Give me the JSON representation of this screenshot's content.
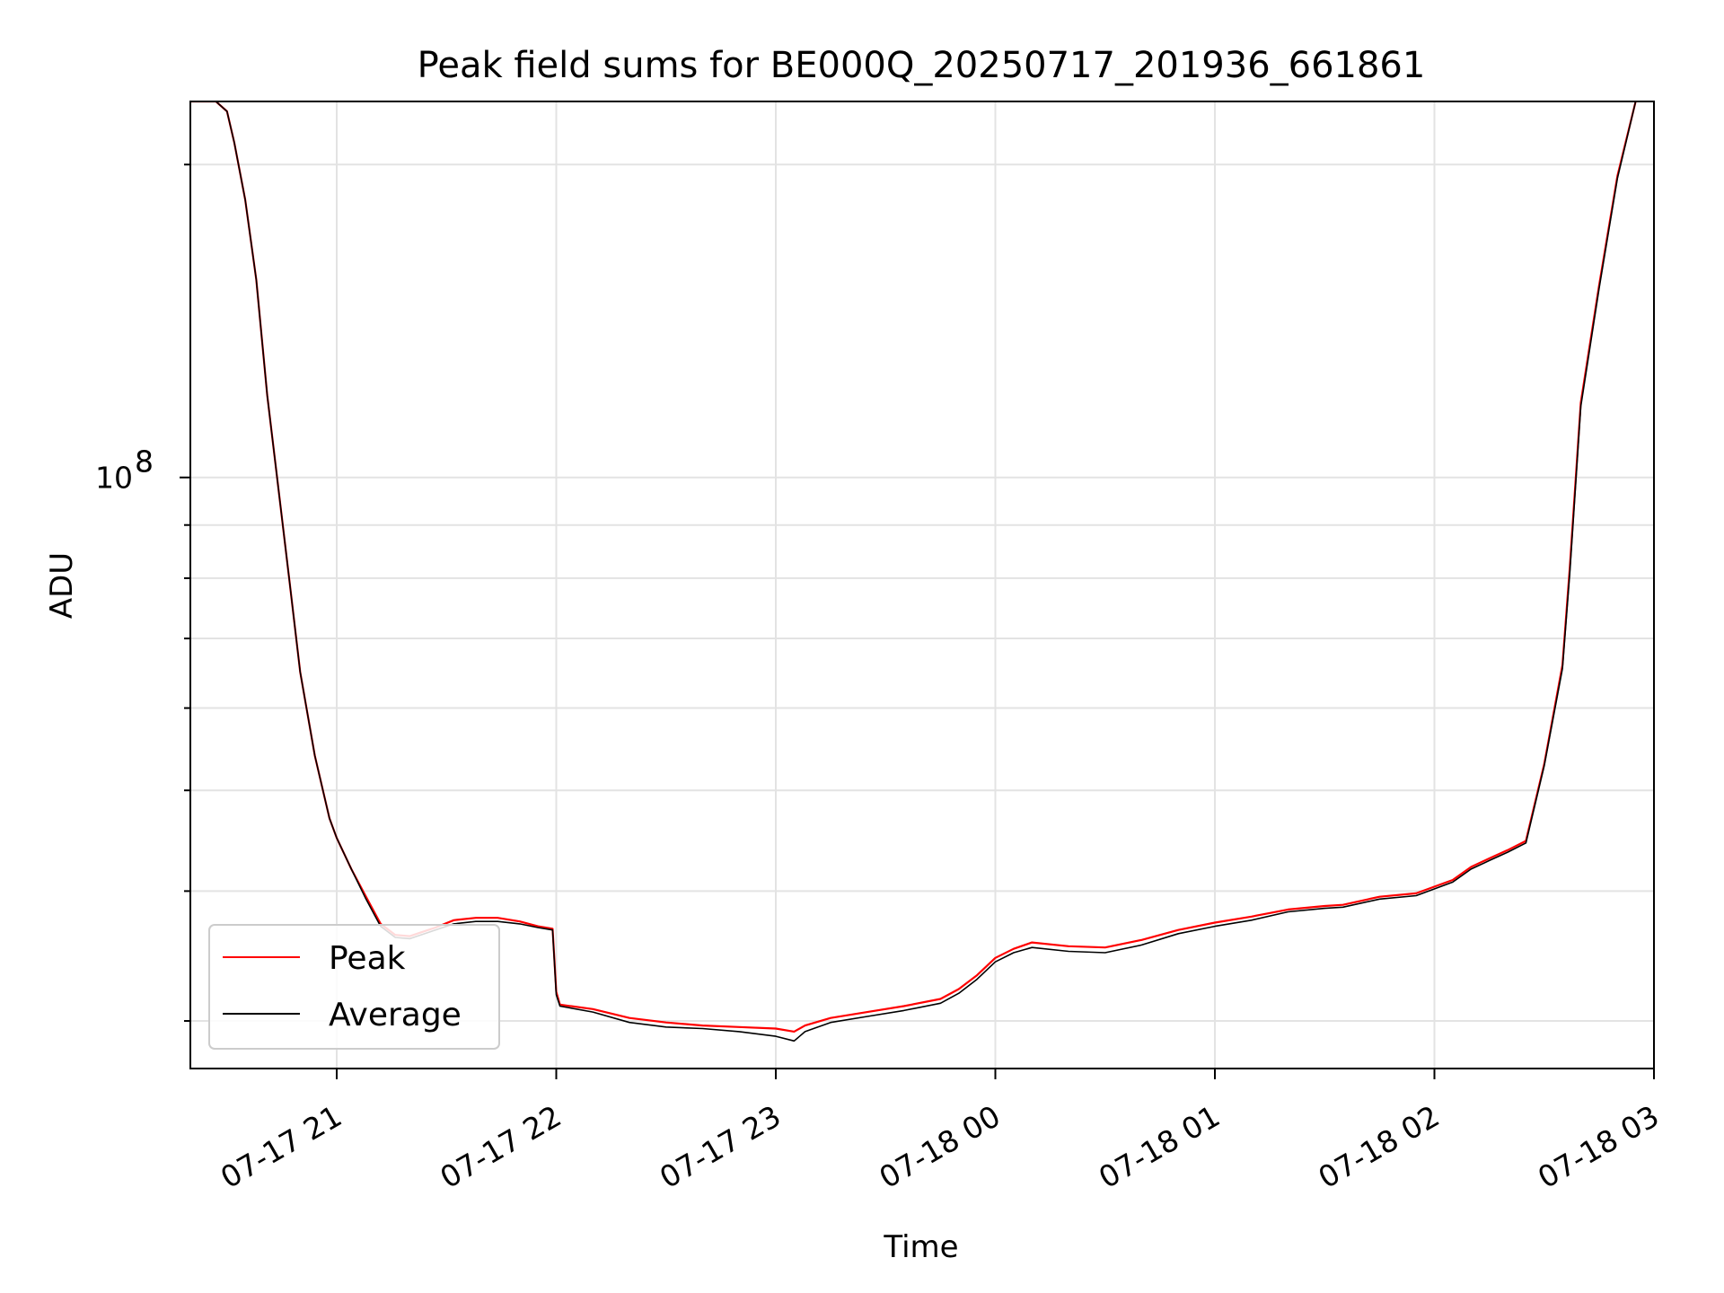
{
  "chart_data": {
    "type": "line",
    "title": "Peak field sums for BE000Q_20250717_201936_661861",
    "xlabel": "Time",
    "ylabel": "ADU",
    "y_scale": "log",
    "ylim": [
      27000000,
      230000000
    ],
    "xlim": [
      "2025-07-17 20:20",
      "2025-07-18 03:00"
    ],
    "grid": true,
    "legend_position": "lower-left",
    "x_ticks": [
      {
        "value": "2025-07-17 21:00",
        "label": "07-17 21"
      },
      {
        "value": "2025-07-17 22:00",
        "label": "07-17 22"
      },
      {
        "value": "2025-07-17 23:00",
        "label": "07-17 23"
      },
      {
        "value": "2025-07-18 00:00",
        "label": "07-18 00"
      },
      {
        "value": "2025-07-18 01:00",
        "label": "07-18 01"
      },
      {
        "value": "2025-07-18 02:00",
        "label": "07-18 02"
      },
      {
        "value": "2025-07-18 03:00",
        "label": "07-18 03"
      }
    ],
    "y_major_ticks": [
      {
        "value": 100000000,
        "base": "10",
        "exponent": "8"
      }
    ],
    "y_minor_ticks": [
      30000000,
      40000000,
      50000000,
      60000000,
      70000000,
      80000000,
      90000000,
      200000000
    ],
    "series": [
      {
        "name": "Peak",
        "color": "#ff0000",
        "x": [
          "2025-07-17 20:20",
          "2025-07-17 20:27",
          "2025-07-17 20:30",
          "2025-07-17 20:32",
          "2025-07-17 20:35",
          "2025-07-17 20:38",
          "2025-07-17 20:41",
          "2025-07-17 20:44",
          "2025-07-17 20:47",
          "2025-07-17 20:50",
          "2025-07-17 20:54",
          "2025-07-17 20:58",
          "2025-07-17 21:00",
          "2025-07-17 21:04",
          "2025-07-17 21:08",
          "2025-07-17 21:12",
          "2025-07-17 21:16",
          "2025-07-17 21:20",
          "2025-07-17 21:23",
          "2025-07-17 21:27",
          "2025-07-17 21:32",
          "2025-07-17 21:38",
          "2025-07-17 21:44",
          "2025-07-17 21:50",
          "2025-07-17 21:55",
          "2025-07-17 21:59",
          "2025-07-17 22:00",
          "2025-07-17 22:01",
          "2025-07-17 22:10",
          "2025-07-17 22:20",
          "2025-07-17 22:30",
          "2025-07-17 22:40",
          "2025-07-17 22:50",
          "2025-07-17 23:00",
          "2025-07-17 23:05",
          "2025-07-17 23:08",
          "2025-07-17 23:15",
          "2025-07-17 23:25",
          "2025-07-17 23:35",
          "2025-07-17 23:45",
          "2025-07-17 23:50",
          "2025-07-17 23:55",
          "2025-07-18 00:00",
          "2025-07-18 00:05",
          "2025-07-18 00:10",
          "2025-07-18 00:20",
          "2025-07-18 00:30",
          "2025-07-18 00:40",
          "2025-07-18 00:50",
          "2025-07-18 01:00",
          "2025-07-18 01:10",
          "2025-07-18 01:20",
          "2025-07-18 01:30",
          "2025-07-18 01:35",
          "2025-07-18 01:45",
          "2025-07-18 01:55",
          "2025-07-18 02:05",
          "2025-07-18 02:10",
          "2025-07-18 02:15",
          "2025-07-18 02:20",
          "2025-07-18 02:25",
          "2025-07-18 02:30",
          "2025-07-18 02:35",
          "2025-07-18 02:37",
          "2025-07-18 02:40",
          "2025-07-18 02:45",
          "2025-07-18 02:50",
          "2025-07-18 02:55"
        ],
        "values": [
          230000000,
          230000000,
          225000000,
          210000000,
          185000000,
          155000000,
          120000000,
          98000000,
          80000000,
          65000000,
          54000000,
          47000000,
          45000000,
          42000000,
          39500000,
          37200000,
          36300000,
          36200000,
          36500000,
          36900000,
          37500000,
          37700000,
          37700000,
          37400000,
          37000000,
          36800000,
          32000000,
          31100000,
          30800000,
          30200000,
          29900000,
          29700000,
          29600000,
          29500000,
          29300000,
          29700000,
          30200000,
          30600000,
          31000000,
          31500000,
          32200000,
          33200000,
          34500000,
          35200000,
          35700000,
          35400000,
          35300000,
          35900000,
          36700000,
          37300000,
          37800000,
          38400000,
          38700000,
          38800000,
          39500000,
          39800000,
          41000000,
          42200000,
          43000000,
          43800000,
          44700000,
          53000000,
          66000000,
          82000000,
          118000000,
          153000000,
          195000000,
          230000000
        ]
      },
      {
        "name": "Average",
        "color": "#000000",
        "x": [
          "2025-07-17 20:20",
          "2025-07-17 20:27",
          "2025-07-17 20:30",
          "2025-07-17 20:32",
          "2025-07-17 20:35",
          "2025-07-17 20:38",
          "2025-07-17 20:41",
          "2025-07-17 20:44",
          "2025-07-17 20:47",
          "2025-07-17 20:50",
          "2025-07-17 20:54",
          "2025-07-17 20:58",
          "2025-07-17 21:00",
          "2025-07-17 21:04",
          "2025-07-17 21:08",
          "2025-07-17 21:12",
          "2025-07-17 21:16",
          "2025-07-17 21:20",
          "2025-07-17 21:23",
          "2025-07-17 21:27",
          "2025-07-17 21:32",
          "2025-07-17 21:38",
          "2025-07-17 21:44",
          "2025-07-17 21:50",
          "2025-07-17 21:55",
          "2025-07-17 21:59",
          "2025-07-17 22:00",
          "2025-07-17 22:01",
          "2025-07-17 22:10",
          "2025-07-17 22:20",
          "2025-07-17 22:30",
          "2025-07-17 22:40",
          "2025-07-17 22:50",
          "2025-07-17 23:00",
          "2025-07-17 23:05",
          "2025-07-17 23:08",
          "2025-07-17 23:15",
          "2025-07-17 23:25",
          "2025-07-17 23:35",
          "2025-07-17 23:45",
          "2025-07-17 23:50",
          "2025-07-17 23:55",
          "2025-07-18 00:00",
          "2025-07-18 00:05",
          "2025-07-18 00:10",
          "2025-07-18 00:20",
          "2025-07-18 00:30",
          "2025-07-18 00:40",
          "2025-07-18 00:50",
          "2025-07-18 01:00",
          "2025-07-18 01:10",
          "2025-07-18 01:20",
          "2025-07-18 01:30",
          "2025-07-18 01:35",
          "2025-07-18 01:45",
          "2025-07-18 01:55",
          "2025-07-18 02:05",
          "2025-07-18 02:10",
          "2025-07-18 02:15",
          "2025-07-18 02:20",
          "2025-07-18 02:25",
          "2025-07-18 02:30",
          "2025-07-18 02:35",
          "2025-07-18 02:37",
          "2025-07-18 02:40",
          "2025-07-18 02:45",
          "2025-07-18 02:50",
          "2025-07-18 02:55"
        ],
        "values": [
          230000000,
          230000000,
          225000000,
          210000000,
          185000000,
          155000000,
          120000000,
          98000000,
          80000000,
          65000000,
          54000000,
          47000000,
          45000000,
          42000000,
          39300000,
          37000000,
          36100000,
          36000000,
          36300000,
          36700000,
          37200000,
          37400000,
          37400000,
          37200000,
          36900000,
          36700000,
          31800000,
          31000000,
          30600000,
          29900000,
          29600000,
          29500000,
          29300000,
          29000000,
          28700000,
          29300000,
          29900000,
          30300000,
          30700000,
          31200000,
          31900000,
          32900000,
          34200000,
          34900000,
          35300000,
          35000000,
          34900000,
          35500000,
          36400000,
          37000000,
          37500000,
          38200000,
          38500000,
          38600000,
          39300000,
          39600000,
          40800000,
          42000000,
          42800000,
          43600000,
          44500000,
          52800000,
          65500000,
          81000000,
          117000000,
          152000000,
          194000000,
          230000000
        ]
      }
    ]
  }
}
